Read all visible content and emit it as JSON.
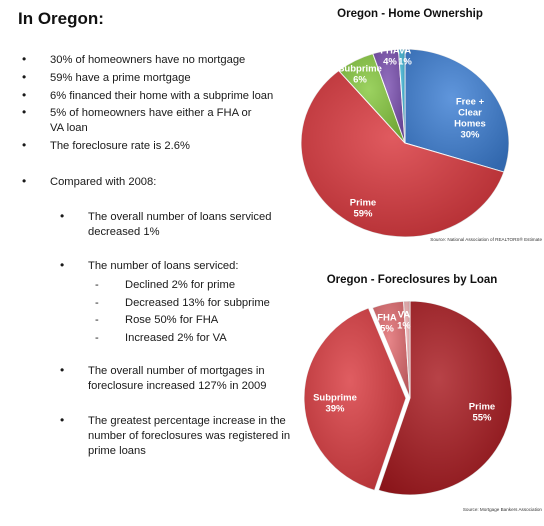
{
  "heading": "In Oregon:",
  "bullets_top": [
    "30% of homeowners have no mortgage",
    "59% have a prime mortgage",
    "6% financed their home with a subprime loan",
    "5% of homeowners have either a FHA or VA loan",
    "The foreclosure rate is 2.6%",
    "Compared with 2008:"
  ],
  "sub_bullets": [
    "The overall number of loans serviced decreased 1%",
    "The number of loans serviced:",
    "The overall number of mortgages in foreclosure increased 127% in 2009",
    "The greatest percentage increase in the number of foreclosures was registered in prime loans"
  ],
  "dash_items": [
    "Declined 2% for prime",
    "Decreased 13% for subprime",
    "Rose 50% for FHA",
    "Increased 2% for VA"
  ],
  "chart_data": [
    {
      "type": "pie",
      "title": "Oregon - Home Ownership",
      "source": "Source: National Association of REALTORS® Estimate",
      "slices": [
        {
          "label": "Free + Clear Homes",
          "value": 30,
          "display": "30%",
          "color": "#3d7fd4"
        },
        {
          "label": "Prime",
          "value": 59,
          "display": "59%",
          "color": "#d9363c"
        },
        {
          "label": "Subprime",
          "value": 6,
          "display": "6%",
          "color": "#86c83e"
        },
        {
          "label": "FHA",
          "value": 4,
          "display": "4%",
          "color": "#7a4fb0"
        },
        {
          "label": "VA",
          "value": 1,
          "display": "1%",
          "color": "#3fb5d6"
        }
      ]
    },
    {
      "type": "pie",
      "title": "Oregon - Foreclosures by Loan",
      "source": "Source: Mortgage Bankers Association",
      "slices": [
        {
          "label": "Prime",
          "value": 55,
          "display": "55%",
          "color": "#a8191f"
        },
        {
          "label": "Subprime",
          "value": 39,
          "display": "39%",
          "color": "#d93a3f"
        },
        {
          "label": "FHA",
          "value": 5,
          "display": "5%",
          "color": "#e06a6e"
        },
        {
          "label": "VA",
          "value": 1,
          "display": "1%",
          "color": "#f0b0b2"
        }
      ]
    }
  ]
}
